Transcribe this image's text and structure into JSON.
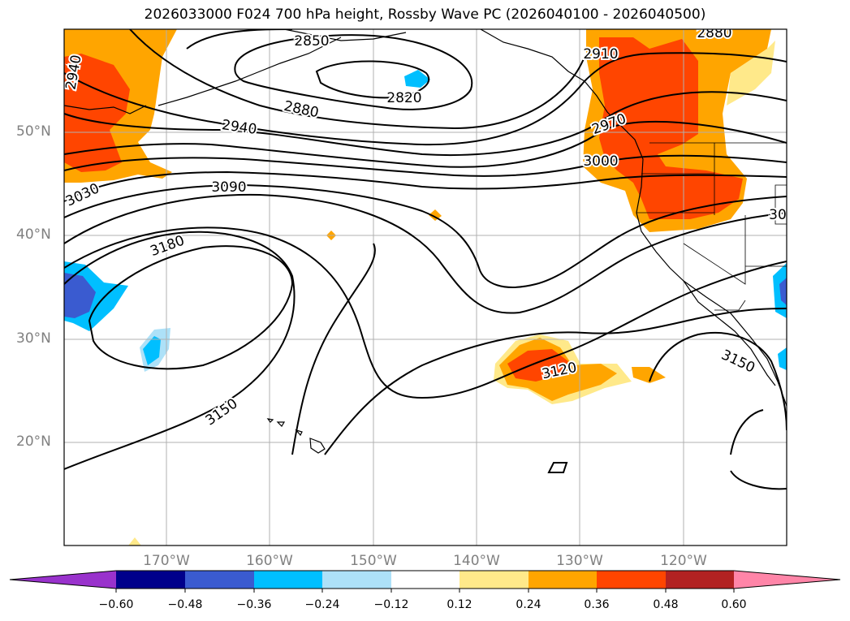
{
  "title": "2026033000 F024 700 hPa height, Rossby Wave PC (2026040100 - 2026040500)",
  "lat_labels": [
    "50°N",
    "40°N",
    "30°N",
    "20°N"
  ],
  "lon_labels": [
    "170°W",
    "160°W",
    "150°W",
    "140°W",
    "130°W",
    "120°W"
  ],
  "contour_labels": [
    "2850",
    "2820",
    "2880",
    "2940",
    "2940",
    "2910",
    "2880",
    "2970",
    "3000",
    "3090",
    "3030",
    "30",
    "3180",
    "3120",
    "3150",
    "3150"
  ],
  "colorbar": {
    "tick_labels": [
      "−0.60",
      "−0.48",
      "−0.36",
      "−0.24",
      "−0.12",
      "0.12",
      "0.24",
      "0.36",
      "0.48",
      "0.60"
    ],
    "colors": [
      "#9932cc",
      "#00008b",
      "#3a5bd0",
      "#00bfff",
      "#ade1f8",
      "#ffffff",
      "#ffe98a",
      "#ffa500",
      "#ff4500",
      "#b22222",
      "#ff85a8"
    ]
  },
  "colors": {
    "land_outline": "#000000",
    "grid": "#b0b0b0",
    "contour": "#000000"
  }
}
